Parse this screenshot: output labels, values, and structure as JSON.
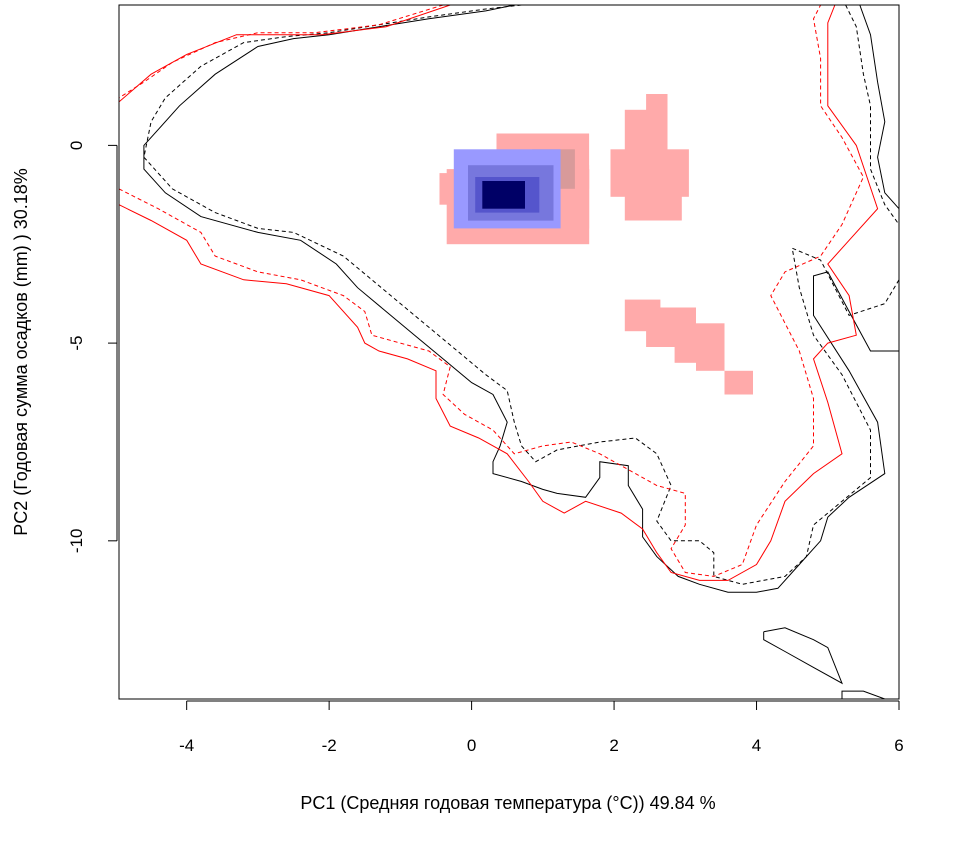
{
  "chart_data": {
    "type": "heatmap",
    "title": "",
    "xlabel": "PC1 (Средняя годовая температура (°C)) 49.84 %",
    "ylabel": "PC2 (Годовая сумма осадков  (mm) ) 30.18%",
    "xlim": [
      -4.95,
      6.0
    ],
    "ylim": [
      -14.0,
      3.55
    ],
    "x_ticks": [
      -4,
      -2,
      0,
      2,
      4,
      6
    ],
    "x_tick_labels": [
      "-4",
      "-2",
      "0",
      "2",
      "4",
      "6"
    ],
    "y_ticks": [
      0,
      -5,
      -10
    ],
    "y_tick_labels": [
      "0",
      "-5",
      "-10"
    ],
    "grid": false,
    "colors": {
      "overlap_light": "#9999ff",
      "overlap_mid": "#5555cc",
      "overlap_dark": "#000066",
      "non_overlap": "#ffaaaa",
      "non_overlap_dark": "#d89a9a",
      "contour_black": "#000000",
      "contour_red": "#ff0000"
    },
    "cell_size": [
      0.1,
      0.2
    ],
    "cells": [
      {
        "level": "pink",
        "x": [
          -0.3,
          1.6
        ],
        "y": [
          -2.4,
          -0.7
        ]
      },
      {
        "level": "pink",
        "x": [
          0.4,
          1.6
        ],
        "y": [
          -1.0,
          0.2
        ]
      },
      {
        "level": "pink",
        "x": [
          -0.4,
          0.0
        ],
        "y": [
          -1.4,
          -0.8
        ]
      },
      {
        "level": "pink",
        "x": [
          1.6,
          1.6
        ],
        "y": [
          -2.0,
          -0.6
        ]
      },
      {
        "level": "pinkdark",
        "x": [
          0.9,
          1.4
        ],
        "y": [
          -1.0,
          -0.2
        ]
      },
      {
        "level": "blue1",
        "x": [
          -0.2,
          1.2
        ],
        "y": [
          -2.0,
          -0.2
        ]
      },
      {
        "level": "blue2",
        "x": [
          0.0,
          1.1
        ],
        "y": [
          -1.8,
          -0.6
        ]
      },
      {
        "level": "blue3",
        "x": [
          0.1,
          0.9
        ],
        "y": [
          -1.6,
          -0.9
        ]
      },
      {
        "level": "blue4",
        "x": [
          0.2,
          0.7
        ],
        "y": [
          -1.5,
          -1.0
        ]
      },
      {
        "level": "pink",
        "x": [
          2.2,
          2.7
        ],
        "y": [
          -0.6,
          0.8
        ]
      },
      {
        "level": "pink",
        "x": [
          2.0,
          3.0
        ],
        "y": [
          -1.2,
          -0.2
        ]
      },
      {
        "level": "pink",
        "x": [
          2.2,
          2.9
        ],
        "y": [
          -1.8,
          -1.0
        ]
      },
      {
        "level": "pink",
        "x": [
          2.5,
          2.7
        ],
        "y": [
          0.6,
          1.2
        ]
      },
      {
        "level": "pink",
        "x": [
          2.2,
          2.6
        ],
        "y": [
          -4.6,
          -4.0
        ]
      },
      {
        "level": "pink",
        "x": [
          2.5,
          3.1
        ],
        "y": [
          -5.0,
          -4.2
        ]
      },
      {
        "level": "pink",
        "x": [
          2.9,
          3.5
        ],
        "y": [
          -5.4,
          -4.6
        ]
      },
      {
        "level": "pink",
        "x": [
          3.2,
          3.5
        ],
        "y": [
          -5.6,
          -5.2
        ]
      },
      {
        "level": "pink",
        "x": [
          3.6,
          3.9
        ],
        "y": [
          -6.2,
          -5.8
        ]
      }
    ],
    "contours": [
      {
        "color": "black",
        "style": "solid",
        "points": [
          [
            0.6,
            3.55
          ],
          [
            0.2,
            3.4
          ],
          [
            -0.6,
            3.2
          ],
          [
            -1.3,
            3.0
          ],
          [
            -2.0,
            2.8
          ],
          [
            -2.5,
            2.7
          ],
          [
            -3.0,
            2.5
          ],
          [
            -3.6,
            1.8
          ],
          [
            -4.1,
            1.0
          ],
          [
            -4.4,
            0.4
          ],
          [
            -4.6,
            0.0
          ],
          [
            -4.6,
            -0.6
          ],
          [
            -4.3,
            -1.2
          ],
          [
            -3.8,
            -1.8
          ],
          [
            -3.0,
            -2.2
          ],
          [
            -2.4,
            -2.4
          ],
          [
            -1.9,
            -3.0
          ],
          [
            -1.6,
            -3.6
          ],
          [
            -1.2,
            -4.2
          ],
          [
            -0.8,
            -4.8
          ],
          [
            -0.4,
            -5.4
          ],
          [
            0.0,
            -6.0
          ],
          [
            0.3,
            -6.3
          ],
          [
            0.5,
            -7.0
          ],
          [
            0.4,
            -7.6
          ],
          [
            0.3,
            -8.0
          ],
          [
            0.3,
            -8.3
          ],
          [
            0.7,
            -8.5
          ],
          [
            1.0,
            -8.7
          ],
          [
            1.2,
            -8.8
          ],
          [
            1.6,
            -8.9
          ],
          [
            1.8,
            -8.4
          ],
          [
            1.8,
            -8.0
          ],
          [
            2.2,
            -8.1
          ],
          [
            2.2,
            -8.6
          ],
          [
            2.4,
            -9.2
          ],
          [
            2.4,
            -9.9
          ],
          [
            2.6,
            -10.4
          ],
          [
            2.9,
            -10.9
          ],
          [
            3.2,
            -11.1
          ],
          [
            3.6,
            -11.3
          ],
          [
            4.0,
            -11.3
          ],
          [
            4.3,
            -11.2
          ],
          [
            4.6,
            -10.6
          ],
          [
            4.9,
            -10.0
          ],
          [
            5.0,
            -9.4
          ],
          [
            5.3,
            -8.9
          ],
          [
            5.8,
            -8.3
          ],
          [
            5.7,
            -7.0
          ],
          [
            5.3,
            -5.7
          ],
          [
            4.8,
            -4.3
          ],
          [
            4.8,
            -3.3
          ],
          [
            5.0,
            -3.2
          ],
          [
            5.3,
            -4.2
          ],
          [
            5.6,
            -5.2
          ],
          [
            6.0,
            -5.2
          ]
        ]
      },
      {
        "color": "black",
        "style": "solid",
        "points": [
          [
            5.45,
            3.55
          ],
          [
            5.6,
            2.8
          ],
          [
            5.7,
            1.6
          ],
          [
            5.8,
            0.6
          ],
          [
            5.7,
            -0.3
          ],
          [
            5.8,
            -1.2
          ],
          [
            6.0,
            -1.6
          ]
        ]
      },
      {
        "color": "black",
        "style": "solid",
        "points": [
          [
            4.1,
            -12.3
          ],
          [
            4.1,
            -12.5
          ],
          [
            4.4,
            -12.8
          ],
          [
            4.8,
            -13.2
          ],
          [
            5.2,
            -13.6
          ],
          [
            5.0,
            -12.7
          ],
          [
            4.8,
            -12.5
          ],
          [
            4.4,
            -12.2
          ],
          [
            4.1,
            -12.3
          ]
        ]
      },
      {
        "color": "black",
        "style": "solid",
        "points": [
          [
            5.2,
            -14.0
          ],
          [
            5.2,
            -13.8
          ],
          [
            5.5,
            -13.8
          ],
          [
            5.8,
            -14.0
          ]
        ]
      },
      {
        "color": "black",
        "style": "dashed",
        "points": [
          [
            0.7,
            3.55
          ],
          [
            0.2,
            3.45
          ],
          [
            -0.6,
            3.25
          ],
          [
            -1.3,
            3.05
          ],
          [
            -2.0,
            2.85
          ],
          [
            -2.6,
            2.75
          ],
          [
            -3.2,
            2.6
          ],
          [
            -3.8,
            2.0
          ],
          [
            -4.3,
            1.2
          ],
          [
            -4.5,
            0.6
          ],
          [
            -4.6,
            -0.3
          ],
          [
            -4.2,
            -1.1
          ],
          [
            -3.6,
            -1.7
          ],
          [
            -3.0,
            -2.1
          ],
          [
            -2.5,
            -2.2
          ],
          [
            -1.8,
            -2.8
          ],
          [
            -1.4,
            -3.4
          ],
          [
            -1.0,
            -4.0
          ],
          [
            -0.6,
            -4.6
          ],
          [
            -0.2,
            -5.2
          ],
          [
            0.2,
            -5.8
          ],
          [
            0.5,
            -6.2
          ],
          [
            0.6,
            -7.0
          ],
          [
            0.7,
            -7.6
          ],
          [
            0.9,
            -8.0
          ],
          [
            1.2,
            -7.7
          ],
          [
            1.8,
            -7.5
          ],
          [
            2.3,
            -7.4
          ],
          [
            2.6,
            -7.8
          ],
          [
            2.8,
            -8.6
          ],
          [
            2.6,
            -9.5
          ],
          [
            2.8,
            -10.0
          ],
          [
            3.2,
            -10.0
          ],
          [
            3.4,
            -10.3
          ],
          [
            3.4,
            -10.9
          ],
          [
            3.8,
            -11.1
          ],
          [
            4.4,
            -10.9
          ],
          [
            4.7,
            -10.4
          ],
          [
            4.8,
            -9.6
          ],
          [
            5.2,
            -9.0
          ],
          [
            5.6,
            -8.4
          ],
          [
            5.6,
            -7.2
          ],
          [
            5.2,
            -5.8
          ],
          [
            4.8,
            -4.8
          ],
          [
            4.6,
            -3.6
          ],
          [
            4.5,
            -2.6
          ],
          [
            4.9,
            -2.9
          ],
          [
            5.3,
            -4.3
          ],
          [
            5.8,
            -4.0
          ],
          [
            6.0,
            -3.4
          ]
        ]
      },
      {
        "color": "black",
        "style": "dashed",
        "points": [
          [
            5.25,
            3.55
          ],
          [
            5.4,
            3.0
          ],
          [
            5.5,
            1.8
          ],
          [
            5.6,
            1.0
          ],
          [
            5.6,
            -0.6
          ],
          [
            5.8,
            -1.5
          ],
          [
            6.0,
            -2.0
          ]
        ]
      },
      {
        "color": "red",
        "style": "solid",
        "points": [
          [
            -0.3,
            3.55
          ],
          [
            -1.2,
            3.0
          ],
          [
            -2.1,
            2.8
          ],
          [
            -2.8,
            2.8
          ],
          [
            -3.3,
            2.8
          ],
          [
            -4.0,
            2.3
          ],
          [
            -4.5,
            1.8
          ],
          [
            -4.95,
            1.1
          ]
        ]
      },
      {
        "color": "red",
        "style": "solid",
        "points": [
          [
            -4.95,
            -1.5
          ],
          [
            -4.5,
            -1.9
          ],
          [
            -4.0,
            -2.4
          ],
          [
            -3.8,
            -3.0
          ],
          [
            -3.2,
            -3.4
          ],
          [
            -2.6,
            -3.5
          ],
          [
            -2.0,
            -3.8
          ],
          [
            -1.6,
            -4.6
          ],
          [
            -1.5,
            -5.0
          ],
          [
            -1.3,
            -5.2
          ],
          [
            -0.9,
            -5.4
          ],
          [
            -0.5,
            -5.7
          ],
          [
            -0.5,
            -6.4
          ],
          [
            -0.3,
            -7.1
          ],
          [
            0.1,
            -7.4
          ],
          [
            0.5,
            -7.8
          ],
          [
            0.8,
            -8.5
          ],
          [
            1.0,
            -9.0
          ],
          [
            1.3,
            -9.3
          ],
          [
            1.6,
            -9.0
          ],
          [
            2.1,
            -9.3
          ],
          [
            2.4,
            -9.7
          ],
          [
            2.6,
            -10.3
          ],
          [
            2.8,
            -10.8
          ],
          [
            3.2,
            -11.0
          ],
          [
            3.6,
            -11.0
          ],
          [
            4.0,
            -10.6
          ],
          [
            4.2,
            -10.0
          ],
          [
            4.4,
            -9.0
          ],
          [
            4.8,
            -8.3
          ],
          [
            5.2,
            -7.8
          ],
          [
            5.0,
            -6.5
          ],
          [
            4.8,
            -5.4
          ],
          [
            5.0,
            -5.0
          ],
          [
            5.4,
            -4.8
          ],
          [
            5.3,
            -3.8
          ],
          [
            5.0,
            -3.0
          ],
          [
            5.3,
            -2.4
          ],
          [
            5.7,
            -1.6
          ],
          [
            5.4,
            0.0
          ],
          [
            5.0,
            1.0
          ],
          [
            5.0,
            2.0
          ],
          [
            5.0,
            3.1
          ],
          [
            5.1,
            3.55
          ]
        ]
      },
      {
        "color": "red",
        "style": "dashed",
        "points": [
          [
            -0.4,
            3.55
          ],
          [
            -1.3,
            3.05
          ],
          [
            -2.2,
            2.85
          ],
          [
            -3.0,
            2.85
          ],
          [
            -3.6,
            2.6
          ],
          [
            -4.2,
            2.1
          ],
          [
            -4.6,
            1.6
          ],
          [
            -4.95,
            1.2
          ]
        ]
      },
      {
        "color": "red",
        "style": "dashed",
        "points": [
          [
            -4.95,
            -1.1
          ],
          [
            -4.4,
            -1.6
          ],
          [
            -3.8,
            -2.2
          ],
          [
            -3.6,
            -2.8
          ],
          [
            -3.0,
            -3.2
          ],
          [
            -2.4,
            -3.4
          ],
          [
            -1.8,
            -3.8
          ],
          [
            -1.5,
            -4.2
          ],
          [
            -1.4,
            -4.8
          ],
          [
            -1.0,
            -5.0
          ],
          [
            -0.6,
            -5.2
          ],
          [
            -0.3,
            -5.6
          ],
          [
            -0.4,
            -6.3
          ],
          [
            -0.1,
            -6.8
          ],
          [
            0.3,
            -7.2
          ],
          [
            0.6,
            -7.8
          ],
          [
            1.0,
            -7.6
          ],
          [
            1.4,
            -7.5
          ],
          [
            1.8,
            -7.8
          ],
          [
            2.2,
            -8.2
          ],
          [
            2.6,
            -8.6
          ],
          [
            3.0,
            -8.8
          ],
          [
            3.0,
            -9.6
          ],
          [
            2.8,
            -10.2
          ],
          [
            3.0,
            -10.8
          ],
          [
            3.4,
            -10.9
          ],
          [
            3.8,
            -10.6
          ],
          [
            4.0,
            -9.6
          ],
          [
            4.4,
            -8.5
          ],
          [
            4.8,
            -7.6
          ],
          [
            4.8,
            -6.4
          ],
          [
            4.6,
            -5.2
          ],
          [
            4.2,
            -3.8
          ],
          [
            4.4,
            -3.2
          ],
          [
            4.9,
            -2.8
          ],
          [
            5.2,
            -2.0
          ],
          [
            5.5,
            -0.8
          ],
          [
            5.2,
            0.2
          ],
          [
            4.9,
            1.0
          ],
          [
            4.9,
            2.2
          ],
          [
            4.8,
            3.2
          ],
          [
            4.9,
            3.55
          ]
        ]
      }
    ]
  }
}
